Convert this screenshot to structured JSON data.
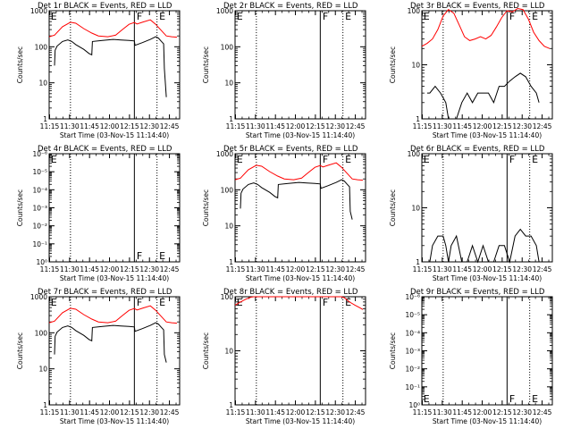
{
  "colors": {
    "events": "#000000",
    "lld": "#ff0000",
    "axis": "#000000",
    "background": "#ffffff"
  },
  "x_tick_labels": [
    "11:15",
    "11:30",
    "11:45",
    "12:00",
    "12:15",
    "12:30",
    "12:45"
  ],
  "x_label": "Start Time (03-Nov-15 11:14:40)",
  "y_label": "Counts/sec",
  "chart_data": [
    {
      "type": "line",
      "title": "Det 1r BLACK = Events, RED = LLD",
      "xlabel": "Start Time (03-Nov-15 11:14:40)",
      "ylabel": "Counts/sec",
      "yscale": "log",
      "x_unit": "minutes after 11:14:40",
      "xlim": [
        0,
        98
      ],
      "ylim": [
        1,
        1000
      ],
      "y_tick_labels": [
        "1",
        "10",
        "100",
        "1000"
      ],
      "vlines_dotted": [
        16,
        81
      ],
      "vlines_solid": [
        64
      ],
      "markers": [
        {
          "label": "E",
          "x": 0.5,
          "pos": "top"
        },
        {
          "label": "F",
          "x": 65,
          "pos": "top"
        },
        {
          "label": "E",
          "x": 82,
          "pos": "top"
        }
      ],
      "series": [
        {
          "role": "lld",
          "x": [
            0,
            4,
            10,
            16,
            20,
            26,
            32,
            37,
            44,
            50,
            55,
            60,
            64,
            66,
            70,
            76,
            80,
            84,
            88,
            92,
            96
          ],
          "values": [
            190,
            210,
            360,
            480,
            450,
            320,
            240,
            200,
            190,
            210,
            300,
            420,
            470,
            430,
            480,
            560,
            420,
            290,
            200,
            190,
            185
          ]
        },
        {
          "role": "events",
          "x": [
            4,
            4.5,
            6,
            10,
            14,
            17,
            20,
            26,
            30,
            32,
            32.5,
            40,
            48,
            54,
            60,
            64,
            64.5,
            70,
            76,
            80,
            82,
            84,
            86,
            86.5,
            88
          ],
          "values": [
            30,
            80,
            105,
            140,
            155,
            140,
            115,
            85,
            65,
            60,
            140,
            150,
            160,
            155,
            150,
            145,
            110,
            130,
            160,
            190,
            175,
            145,
            120,
            25,
            4
          ]
        }
      ]
    },
    {
      "type": "line",
      "title": "Det 2r BLACK = Events, RED = LLD",
      "xlabel": "Start Time (03-Nov-15 11:14:40)",
      "ylabel": "Counts/sec",
      "yscale": "log",
      "x_unit": "minutes after 11:14:40",
      "xlim": [
        0,
        98
      ],
      "ylim": [
        1,
        1000
      ],
      "y_tick_labels": [
        "1",
        "10",
        "100",
        "1000"
      ],
      "vlines_dotted": [
        16,
        81
      ],
      "vlines_solid": [
        64
      ],
      "markers": [
        {
          "label": "E",
          "x": 0.5,
          "pos": "top"
        },
        {
          "label": "F",
          "x": 65,
          "pos": "top"
        },
        {
          "label": "E",
          "x": 82,
          "pos": "top"
        }
      ],
      "series": []
    },
    {
      "type": "line",
      "title": "Det 3r BLACK = Events, RED = LLD",
      "xlabel": "Start Time (03-Nov-15 11:14:40)",
      "ylabel": "Counts/sec",
      "yscale": "log",
      "x_unit": "minutes after 11:14:40",
      "xlim": [
        0,
        98
      ],
      "ylim": [
        1,
        100
      ],
      "y_tick_labels": [
        "1",
        "10",
        "100"
      ],
      "vlines_dotted": [
        16,
        81
      ],
      "vlines_solid": [
        64
      ],
      "markers": [
        {
          "label": "E",
          "x": 0.5,
          "pos": "top"
        },
        {
          "label": "F",
          "x": 65,
          "pos": "top"
        },
        {
          "label": "E",
          "x": 82,
          "pos": "top"
        }
      ],
      "series": [
        {
          "role": "lld",
          "x": [
            0,
            4,
            8,
            12,
            16,
            20,
            24,
            28,
            32,
            36,
            40,
            44,
            48,
            52,
            56,
            60,
            64,
            68,
            72,
            76,
            80,
            84,
            88,
            92,
            96
          ],
          "values": [
            22,
            25,
            30,
            45,
            80,
            105,
            90,
            55,
            33,
            28,
            30,
            33,
            30,
            35,
            50,
            75,
            100,
            95,
            110,
            105,
            70,
            40,
            28,
            22,
            20
          ]
        },
        {
          "role": "events",
          "x": [
            4,
            6,
            10,
            14,
            18,
            20,
            22,
            26,
            30,
            34,
            38,
            42,
            46,
            50,
            54,
            58,
            62,
            66,
            70,
            74,
            78,
            82,
            86,
            88
          ],
          "values": [
            3,
            3,
            4,
            3,
            2,
            1,
            1,
            1,
            2,
            3,
            2,
            3,
            3,
            3,
            2,
            4,
            4,
            5,
            6,
            7,
            6,
            4,
            3,
            2
          ]
        }
      ]
    },
    {
      "type": "line",
      "title": "Det 4r BLACK = Events, RED = LLD",
      "xlabel": "Start Time (03-Nov-15 11:14:40)",
      "ylabel": "Counts/sec",
      "yscale": "log",
      "x_unit": "minutes after 11:14:40",
      "xlim": [
        0,
        98
      ],
      "ylim": [
        1,
        1000000
      ],
      "y_tick_labels": [
        "10⁰",
        "10⁻¹",
        "10⁻²",
        "10⁻³",
        "10⁻⁴",
        "10⁻⁵",
        "10⁻⁶"
      ],
      "vlines_dotted": [
        16,
        81
      ],
      "vlines_solid": [
        64
      ],
      "markers": [
        {
          "label": "E",
          "x": 0.5,
          "pos": "top"
        },
        {
          "label": "F",
          "x": 65,
          "pos": "bottom"
        },
        {
          "label": "E",
          "x": 82,
          "pos": "bottom"
        }
      ],
      "series": []
    },
    {
      "type": "line",
      "title": "Det 5r BLACK = Events, RED = LLD",
      "xlabel": "Start Time (03-Nov-15 11:14:40)",
      "ylabel": "Counts/sec",
      "yscale": "log",
      "x_unit": "minutes after 11:14:40",
      "xlim": [
        0,
        98
      ],
      "ylim": [
        1,
        1000
      ],
      "y_tick_labels": [
        "1",
        "10",
        "100",
        "1000"
      ],
      "vlines_dotted": [
        16,
        81
      ],
      "vlines_solid": [
        64
      ],
      "markers": [
        {
          "label": "E",
          "x": 0.5,
          "pos": "top"
        },
        {
          "label": "F",
          "x": 65,
          "pos": "top"
        },
        {
          "label": "E",
          "x": 82,
          "pos": "top"
        }
      ],
      "series": [
        {
          "role": "lld",
          "x": [
            0,
            4,
            10,
            16,
            20,
            26,
            32,
            37,
            44,
            50,
            55,
            60,
            64,
            66,
            70,
            76,
            80,
            84,
            88,
            92,
            96
          ],
          "values": [
            190,
            210,
            360,
            480,
            450,
            320,
            240,
            200,
            190,
            210,
            300,
            420,
            470,
            430,
            480,
            560,
            420,
            290,
            200,
            190,
            185
          ]
        },
        {
          "role": "events",
          "x": [
            4,
            4.5,
            6,
            10,
            14,
            17,
            20,
            26,
            30,
            32,
            32.5,
            40,
            48,
            54,
            60,
            64,
            64.5,
            70,
            76,
            80,
            82,
            84,
            86,
            86.5,
            88
          ],
          "values": [
            30,
            80,
            105,
            140,
            155,
            140,
            115,
            85,
            65,
            60,
            140,
            150,
            160,
            155,
            150,
            145,
            110,
            130,
            160,
            190,
            175,
            145,
            120,
            25,
            15
          ]
        }
      ]
    },
    {
      "type": "line",
      "title": "Det 6r BLACK = Events, RED = LLD",
      "xlabel": "Start Time (03-Nov-15 11:14:40)",
      "ylabel": "Counts/sec",
      "yscale": "log",
      "x_unit": "minutes after 11:14:40",
      "xlim": [
        0,
        98
      ],
      "ylim": [
        1,
        100
      ],
      "y_tick_labels": [
        "1",
        "10",
        "100"
      ],
      "vlines_dotted": [
        16,
        81
      ],
      "vlines_solid": [
        64
      ],
      "markers": [
        {
          "label": "E",
          "x": 0.5,
          "pos": "top"
        },
        {
          "label": "F",
          "x": 65,
          "pos": "top"
        },
        {
          "label": "E",
          "x": 82,
          "pos": "top"
        }
      ],
      "series": [
        {
          "role": "events",
          "x": [
            4,
            6,
            8,
            12,
            16,
            18,
            20,
            22,
            26,
            30,
            34,
            38,
            42,
            46,
            50,
            54,
            58,
            62,
            66,
            70,
            74,
            78,
            82,
            86,
            88
          ],
          "values": [
            1,
            1,
            2,
            3,
            3,
            2,
            1,
            2,
            3,
            1,
            1,
            2,
            1,
            2,
            1,
            1,
            2,
            2,
            1,
            3,
            4,
            3,
            3,
            2,
            1
          ]
        }
      ]
    },
    {
      "type": "line",
      "title": "Det 7r BLACK = Events, RED = LLD",
      "xlabel": "Start Time (03-Nov-15 11:14:40)",
      "ylabel": "Counts/sec",
      "yscale": "log",
      "x_unit": "minutes after 11:14:40",
      "xlim": [
        0,
        98
      ],
      "ylim": [
        1,
        1000
      ],
      "y_tick_labels": [
        "1",
        "10",
        "100",
        "1000"
      ],
      "vlines_dotted": [
        16,
        81
      ],
      "vlines_solid": [
        64
      ],
      "markers": [
        {
          "label": "E",
          "x": 0.5,
          "pos": "top"
        },
        {
          "label": "F",
          "x": 65,
          "pos": "top"
        },
        {
          "label": "E",
          "x": 82,
          "pos": "top"
        }
      ],
      "series": [
        {
          "role": "lld",
          "x": [
            0,
            4,
            10,
            16,
            20,
            26,
            32,
            37,
            44,
            50,
            55,
            60,
            64,
            66,
            70,
            76,
            80,
            84,
            88,
            92,
            96
          ],
          "values": [
            190,
            210,
            360,
            480,
            450,
            320,
            240,
            200,
            190,
            210,
            300,
            420,
            470,
            430,
            480,
            560,
            420,
            290,
            200,
            190,
            185
          ]
        },
        {
          "role": "events",
          "x": [
            4,
            4.5,
            6,
            10,
            14,
            17,
            20,
            26,
            30,
            32,
            32.5,
            40,
            48,
            54,
            60,
            64,
            64.5,
            70,
            76,
            80,
            82,
            84,
            86,
            86.5,
            88
          ],
          "values": [
            25,
            80,
            105,
            140,
            155,
            140,
            115,
            85,
            65,
            60,
            140,
            150,
            160,
            155,
            150,
            145,
            110,
            130,
            160,
            190,
            175,
            145,
            120,
            25,
            15
          ]
        }
      ]
    },
    {
      "type": "line",
      "title": "Det 8r BLACK = Events, RED = LLD",
      "xlabel": "Start Time (03-Nov-15 11:14:40)",
      "ylabel": "Counts/sec",
      "yscale": "log",
      "x_unit": "minutes after 11:14:40",
      "xlim": [
        0,
        98
      ],
      "ylim": [
        1,
        100
      ],
      "y_tick_labels": [
        "1",
        "10",
        "100"
      ],
      "vlines_dotted": [
        16,
        81
      ],
      "vlines_solid": [
        64
      ],
      "markers": [
        {
          "label": "E",
          "x": 0.5,
          "pos": "top"
        },
        {
          "label": "F",
          "x": 65,
          "pos": "top"
        },
        {
          "label": "E",
          "x": 82,
          "pos": "top"
        }
      ],
      "series": [
        {
          "role": "lld",
          "x": [
            0,
            4,
            8,
            12,
            14,
            16,
            18,
            56,
            60,
            64,
            68,
            72,
            76,
            78,
            80,
            82,
            86,
            90,
            94,
            96
          ],
          "values": [
            70,
            80,
            90,
            98,
            100,
            100,
            100,
            100,
            100,
            100,
            100,
            100,
            100,
            100,
            100,
            96,
            80,
            70,
            62,
            58
          ]
        }
      ]
    },
    {
      "type": "line",
      "title": "Det 9r BLACK = Events, RED = LLD",
      "xlabel": "Start Time (03-Nov-15 11:14:40)",
      "ylabel": "Counts/sec",
      "yscale": "log",
      "x_unit": "minutes after 11:14:40",
      "xlim": [
        0,
        98
      ],
      "ylim": [
        1,
        1000000
      ],
      "y_tick_labels": [
        "10⁰",
        "10⁻¹",
        "10⁻²",
        "10⁻³",
        "10⁻⁴",
        "10⁻⁵",
        "10⁻⁶"
      ],
      "vlines_dotted": [
        16,
        81
      ],
      "vlines_solid": [
        64
      ],
      "markers": [
        {
          "label": "E",
          "x": 0.5,
          "pos": "bottom"
        },
        {
          "label": "F",
          "x": 65,
          "pos": "bottom"
        },
        {
          "label": "E",
          "x": 82,
          "pos": "bottom"
        }
      ],
      "series": []
    }
  ]
}
